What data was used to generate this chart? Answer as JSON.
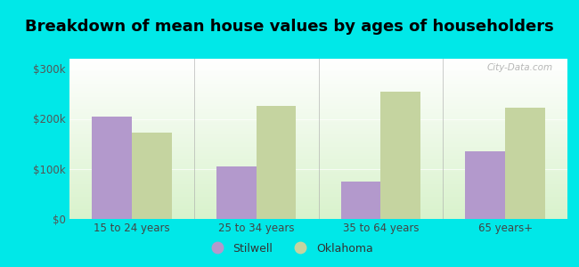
{
  "title": "Breakdown of mean house values by ages of householders",
  "categories": [
    "15 to 24 years",
    "25 to 34 years",
    "35 to 64 years",
    "65 years+"
  ],
  "stilwell_values": [
    205000,
    105000,
    75000,
    135000
  ],
  "oklahoma_values": [
    172000,
    225000,
    255000,
    222000
  ],
  "ylim": [
    0,
    320000
  ],
  "yticks": [
    0,
    100000,
    200000,
    300000
  ],
  "ytick_labels": [
    "$0",
    "$100k",
    "$200k",
    "$300k"
  ],
  "stilwell_color": "#b399cc",
  "oklahoma_color": "#c5d4a0",
  "outer_background": "#00e8e8",
  "bar_width": 0.32,
  "legend_stilwell": "Stilwell",
  "legend_oklahoma": "Oklahoma",
  "title_fontsize": 13,
  "watermark": "City-Data.com"
}
